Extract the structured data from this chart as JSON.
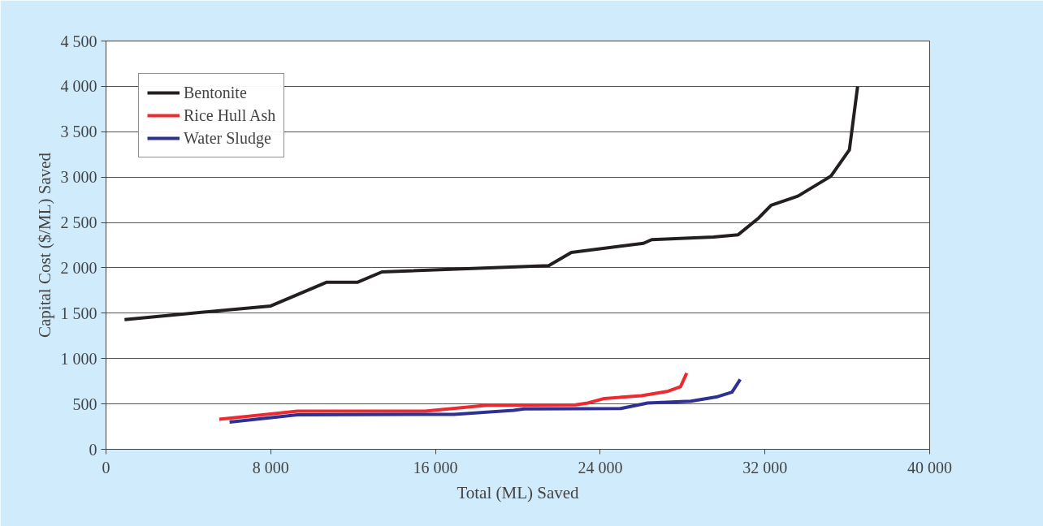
{
  "chart_data": {
    "type": "line",
    "xlabel": "Total (ML) Saved",
    "ylabel": "Capital Cost ($/ML) Saved",
    "xlim": [
      0,
      40000
    ],
    "ylim": [
      0,
      4500
    ],
    "xticks": [
      {
        "value": 0,
        "label": "0"
      },
      {
        "value": 8000,
        "label": "8 000"
      },
      {
        "value": 16000,
        "label": "16 000"
      },
      {
        "value": 24000,
        "label": "24 000"
      },
      {
        "value": 32000,
        "label": "32 000"
      },
      {
        "value": 40000,
        "label": "40 000"
      }
    ],
    "yticks": [
      0,
      500,
      {
        "value": 1000,
        "label": "1 000"
      },
      {
        "value": 1500,
        "label": "1 500"
      },
      {
        "value": 2000,
        "label": "2 000"
      },
      {
        "value": 2500,
        "label": "2 500"
      },
      {
        "value": 3000,
        "label": "3 000"
      },
      {
        "value": 3500,
        "label": "3 500"
      },
      {
        "value": 4000,
        "label": "4 000"
      },
      {
        "value": 4500,
        "label": "4 500"
      }
    ],
    "grid": "y",
    "legend": "top left",
    "marker": "none",
    "line_style": "solid",
    "series": [
      {
        "name": "Bentonite",
        "color": "#231f20",
        "x": [
          900,
          8000,
          10700,
          12200,
          13400,
          21500,
          22600,
          26100,
          26500,
          29500,
          30700,
          31700,
          32300,
          33600,
          35200,
          36100,
          36500
        ],
        "values": [
          1430,
          1580,
          1840,
          1840,
          1955,
          2025,
          2170,
          2270,
          2310,
          2340,
          2365,
          2550,
          2690,
          2790,
          3010,
          3300,
          4000
        ]
      },
      {
        "name": "Rice Hull Ash",
        "color": "#ed2a2f",
        "x": [
          5500,
          9300,
          15500,
          18500,
          22800,
          23400,
          24200,
          26000,
          27300,
          27900,
          28200
        ],
        "values": [
          330,
          420,
          420,
          485,
          490,
          510,
          560,
          590,
          640,
          690,
          840
        ]
      },
      {
        "name": "Water Sludge",
        "color": "#2e3192",
        "x": [
          6000,
          9300,
          16900,
          19800,
          20300,
          25000,
          26300,
          28400,
          29700,
          30400,
          30800
        ],
        "values": [
          300,
          380,
          385,
          430,
          445,
          450,
          510,
          530,
          580,
          630,
          770
        ]
      }
    ]
  }
}
